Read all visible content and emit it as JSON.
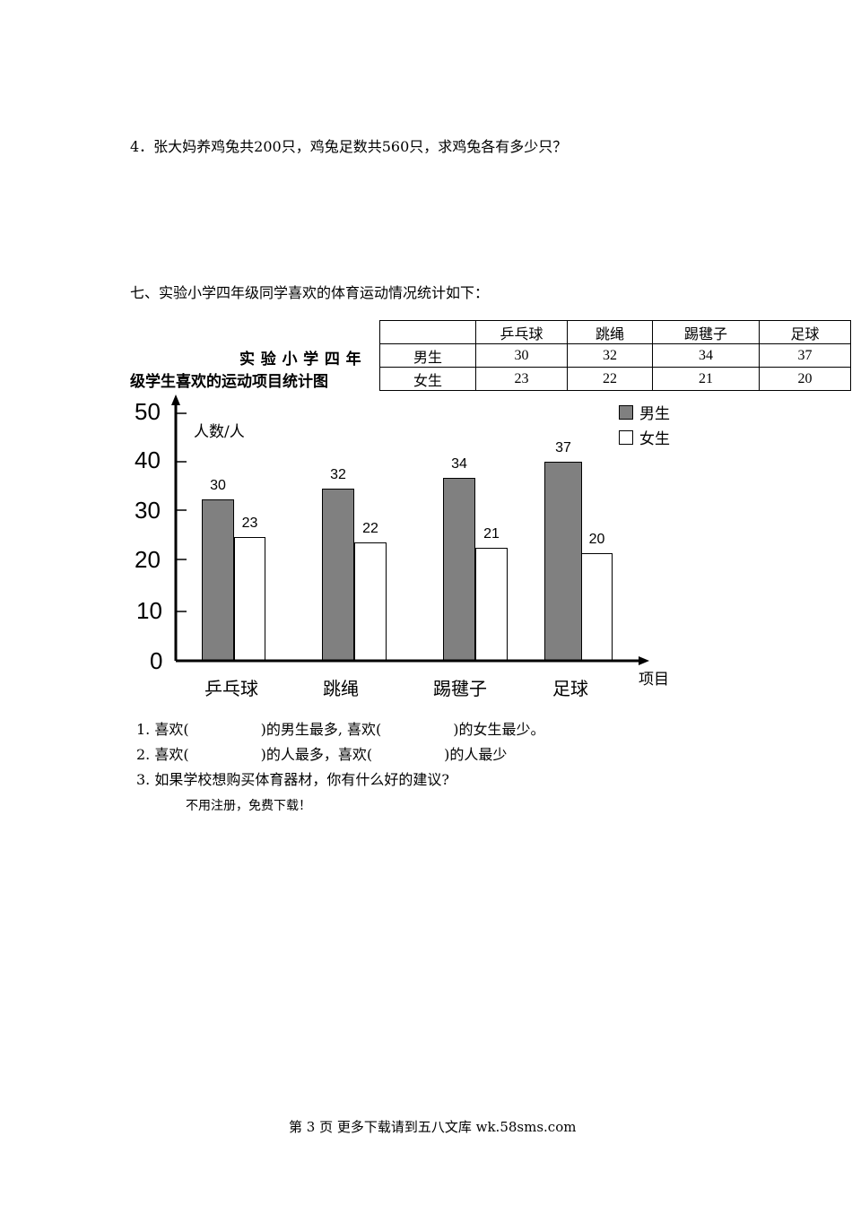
{
  "question4": "4．张大妈养鸡兔共200只，鸡兔足数共560只，求鸡兔各有多少只？",
  "section7": "七、实验小学四年级同学喜欢的体育运动情况统计如下：",
  "table": {
    "headers": [
      "",
      "乒乓球",
      "跳绳",
      "踢毽子",
      "足球"
    ],
    "rows": [
      [
        "男生",
        "30",
        "32",
        "34",
        "37"
      ],
      [
        "女生",
        "23",
        "22",
        "21",
        "20"
      ]
    ]
  },
  "chart_data": {
    "type": "bar",
    "title_line1": "实 验 小 学 四 年",
    "title_line2": "级学生喜欢的运动项目统计图",
    "ylabel": "人数/人",
    "xlabel": "项目",
    "categories": [
      "乒乓球",
      "跳绳",
      "踢毽子",
      "足球"
    ],
    "yticks": [
      "0",
      "10",
      "20",
      "30",
      "40",
      "50"
    ],
    "ylim": [
      0,
      50
    ],
    "legend_position": "top-right",
    "series": [
      {
        "name": "男生",
        "values": [
          30,
          32,
          34,
          37
        ],
        "color": "#808080"
      },
      {
        "name": "女生",
        "values": [
          23,
          22,
          21,
          20
        ],
        "color": "#ffffff"
      }
    ]
  },
  "questions": [
    "1. 喜欢(　　　　　)的男生最多, 喜欢(　　　　　)的女生最少。",
    "2. 喜欢(　　　　　)的人最多，喜欢(　　　　　)的人最少",
    "3. 如果学校想购买体育器材，你有什么好的建议?"
  ],
  "note": "不用注册，免费下载！",
  "footer": "第 3 页 更多下载请到五八文库 wk.58sms.com"
}
